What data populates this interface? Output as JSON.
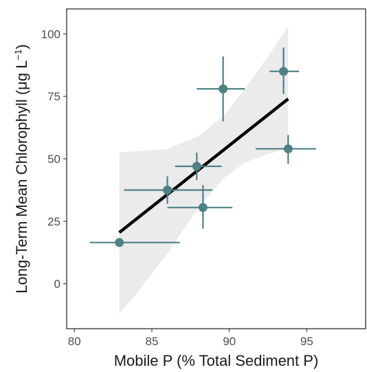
{
  "chart_data": {
    "type": "scatter",
    "xlabel": "Mobile P (% Total Sediment P)",
    "ylabel": "Long-Term Mean Chlorophyll (μg L",
    "ylabel_superscript": "−1",
    "ylabel_close": ")",
    "xlim": [
      79.5,
      98.8
    ],
    "ylim": [
      -18,
      110
    ],
    "x_ticks": [
      80,
      85,
      90,
      95
    ],
    "y_ticks": [
      0,
      25,
      50,
      75,
      100
    ],
    "grid": false,
    "colors": {
      "point": "#4f8085",
      "fit": "#000000",
      "band": "#ebebeb"
    },
    "points": [
      {
        "x": 82.9,
        "y": 16.5,
        "xerr": [
          81.0,
          86.8
        ],
        "yerr": [
          16.5,
          16.5
        ]
      },
      {
        "x": 86.0,
        "y": 37.5,
        "xerr": [
          83.2,
          88.9
        ],
        "yerr": [
          32.0,
          43.0
        ]
      },
      {
        "x": 87.9,
        "y": 47.0,
        "xerr": [
          86.5,
          89.5
        ],
        "yerr": [
          41.5,
          52.5
        ]
      },
      {
        "x": 88.3,
        "y": 30.5,
        "xerr": [
          86.0,
          90.2
        ],
        "yerr": [
          22.0,
          39.5
        ]
      },
      {
        "x": 89.6,
        "y": 78.0,
        "xerr": [
          87.9,
          91.0
        ],
        "yerr": [
          65.0,
          91.0
        ]
      },
      {
        "x": 93.5,
        "y": 85.0,
        "xerr": [
          92.6,
          94.5
        ],
        "yerr": [
          76.0,
          94.5
        ]
      },
      {
        "x": 93.8,
        "y": 54.0,
        "xerr": [
          91.7,
          95.6
        ],
        "yerr": [
          48.0,
          59.5
        ]
      }
    ],
    "fit_line": {
      "x": [
        82.9,
        93.8
      ],
      "y": [
        20.5,
        74.0
      ]
    },
    "confidence_band": {
      "x": [
        82.9,
        84.0,
        86.0,
        88.0,
        89.6,
        91.0,
        92.5,
        93.8
      ],
      "upper": [
        52.5,
        53.0,
        54.0,
        59.0,
        67.0,
        78.0,
        91.0,
        103.0
      ],
      "lower": [
        -12.0,
        -4.0,
        12.0,
        30.5,
        42.0,
        48.5,
        52.0,
        54.0
      ]
    }
  }
}
